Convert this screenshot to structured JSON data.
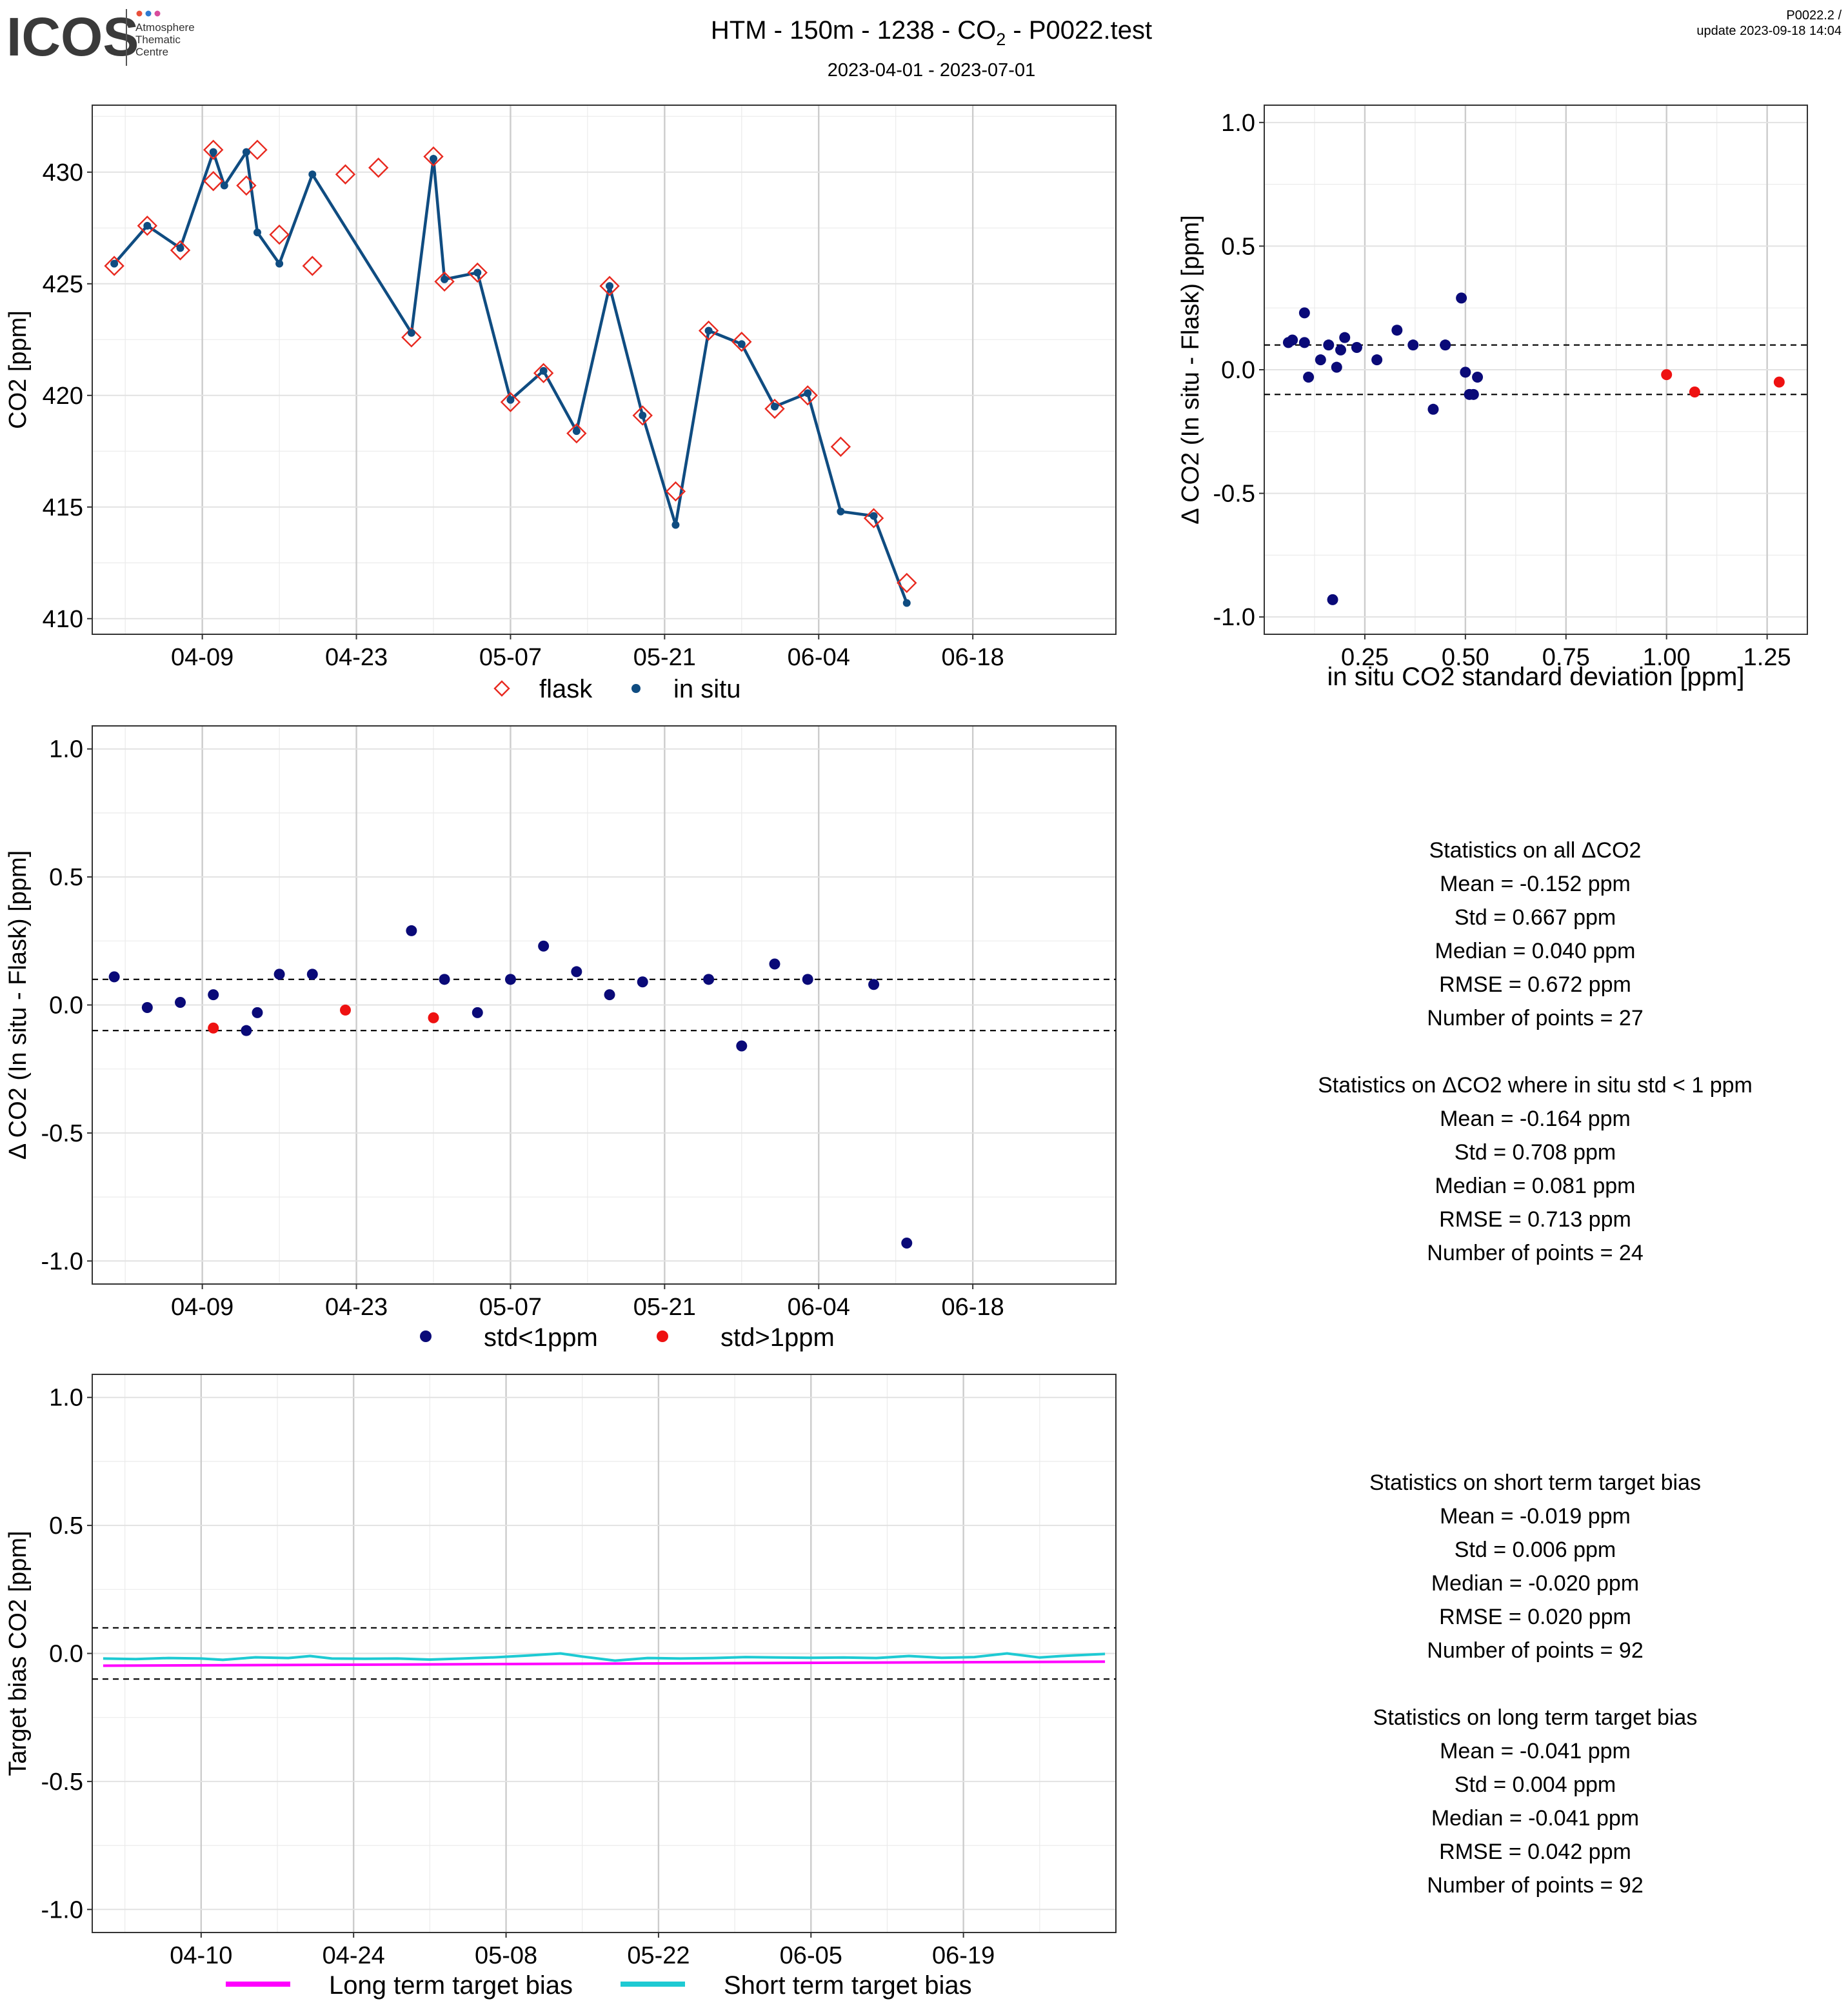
{
  "header": {
    "logo_text": "ICOS",
    "logo_sub": [
      "Atmosphere",
      "Thematic",
      "Centre"
    ],
    "title_main": "HTM - 150m - 1238 - CO",
    "title_sub": "2",
    "title_tail": " - P0022.test",
    "date_range": "2023-04-01 - 2023-07-01",
    "version": "P0022.2 /",
    "update": "update  2023-09-18 14:04"
  },
  "colors": {
    "insitu": "#0f4c81",
    "flask": "#e8291f",
    "std_lt": "#0a0a78",
    "std_gt": "#ee1111",
    "long_bias": "#ff00ff",
    "short_bias": "#1ecad3"
  },
  "chart_data": [
    {
      "id": "co2_timeseries",
      "type": "line",
      "ylabel": "CO2 [ppm]",
      "xlabel": "",
      "x_tick_labels": [
        "04-09",
        "04-23",
        "05-07",
        "05-21",
        "06-04",
        "06-18"
      ],
      "x_ticks": [
        "2023-04-09",
        "2023-04-23",
        "2023-05-07",
        "2023-05-21",
        "2023-06-04",
        "2023-06-18"
      ],
      "xlim": [
        "2023-03-30",
        "2023-07-01"
      ],
      "ylim": [
        409.3,
        433.0
      ],
      "y_ticks": [
        410,
        415,
        420,
        425,
        430
      ],
      "legend": [
        "flask",
        "in situ"
      ],
      "legend_position": "bottom",
      "series": [
        {
          "name": "in situ",
          "kind": "line+points",
          "x": [
            "2023-04-01",
            "2023-04-04",
            "2023-04-07",
            "2023-04-10",
            "2023-04-11",
            "2023-04-13",
            "2023-04-14",
            "2023-04-16",
            "2023-04-19",
            "2023-04-22",
            "2023-04-28",
            "2023-04-30",
            "2023-05-01",
            "2023-05-04",
            "2023-05-07",
            "2023-05-10",
            "2023-05-13",
            "2023-05-16",
            "2023-05-19",
            "2023-05-22",
            "2023-05-25",
            "2023-05-28",
            "2023-05-31",
            "2023-06-03",
            "2023-06-06",
            "2023-06-09",
            "2023-06-12"
          ],
          "values": [
            425.9,
            427.6,
            426.6,
            430.9,
            429.4,
            430.9,
            427.3,
            425.9,
            429.9,
            null,
            422.8,
            430.6,
            425.2,
            425.5,
            419.8,
            421.1,
            418.4,
            424.9,
            419.1,
            414.2,
            422.9,
            422.3,
            419.5,
            420.1,
            414.8,
            414.6,
            410.7
          ]
        },
        {
          "name": "flask",
          "kind": "points",
          "x": [
            "2023-04-01",
            "2023-04-04",
            "2023-04-07",
            "2023-04-10",
            "2023-04-10",
            "2023-04-13",
            "2023-04-14",
            "2023-04-16",
            "2023-04-19",
            "2023-04-22",
            "2023-04-25",
            "2023-04-28",
            "2023-04-30",
            "2023-05-01",
            "2023-05-04",
            "2023-05-07",
            "2023-05-10",
            "2023-05-13",
            "2023-05-16",
            "2023-05-19",
            "2023-05-22",
            "2023-05-25",
            "2023-05-28",
            "2023-05-31",
            "2023-06-03",
            "2023-06-06",
            "2023-06-09",
            "2023-06-12"
          ],
          "values": [
            425.8,
            427.6,
            426.5,
            429.6,
            431.0,
            429.4,
            431.0,
            427.2,
            425.8,
            429.9,
            430.2,
            422.6,
            430.7,
            425.1,
            425.5,
            419.7,
            421.0,
            418.3,
            424.9,
            419.1,
            415.7,
            422.9,
            422.4,
            419.4,
            420.0,
            417.7,
            414.5,
            411.6
          ]
        }
      ]
    },
    {
      "id": "delta_vs_std",
      "type": "scatter",
      "xlabel": "in situ CO2 standard deviation [ppm]",
      "ylabel": "Δ CO2 (In situ - Flask) [ppm]",
      "xlim": [
        0.0,
        1.35
      ],
      "ylim": [
        -1.07,
        1.07
      ],
      "x_ticks": [
        0.25,
        0.5,
        0.75,
        1.0,
        1.25
      ],
      "x_tick_labels": [
        "0.25",
        "0.50",
        "0.75",
        "1.00",
        "1.25"
      ],
      "y_ticks": [
        1.0,
        0.5,
        0.0,
        -0.5,
        -1.0
      ],
      "y_tick_labels": [
        "1.0",
        "0.5",
        "0.0",
        "-0.5",
        "-1.0"
      ],
      "hlines": [
        0.1,
        -0.1
      ],
      "series": [
        {
          "name": "std<1ppm",
          "x": [
            0.06,
            0.07,
            0.1,
            0.1,
            0.11,
            0.14,
            0.16,
            0.17,
            0.18,
            0.19,
            0.2,
            0.23,
            0.28,
            0.33,
            0.37,
            0.42,
            0.45,
            0.49,
            0.5,
            0.52,
            0.53,
            0.51
          ],
          "y": [
            0.11,
            0.12,
            0.23,
            0.11,
            -0.03,
            0.04,
            0.1,
            -0.93,
            0.01,
            0.08,
            0.13,
            0.09,
            0.04,
            0.16,
            0.1,
            -0.16,
            0.1,
            0.29,
            -0.01,
            -0.1,
            -0.03,
            -0.1
          ]
        },
        {
          "name": "std>1ppm",
          "x": [
            1.0,
            1.07,
            1.28
          ],
          "y": [
            -0.02,
            -0.09,
            -0.05
          ]
        }
      ]
    },
    {
      "id": "delta_timeseries",
      "type": "scatter",
      "ylabel": "Δ CO2 (In situ - Flask) [ppm]",
      "xlabel": "",
      "x_tick_labels": [
        "04-09",
        "04-23",
        "05-07",
        "05-21",
        "06-04",
        "06-18"
      ],
      "x_ticks": [
        "2023-04-09",
        "2023-04-23",
        "2023-05-07",
        "2023-05-21",
        "2023-06-04",
        "2023-06-18"
      ],
      "xlim": [
        "2023-03-30",
        "2023-07-01"
      ],
      "ylim": [
        -1.09,
        1.09
      ],
      "y_ticks": [
        1.0,
        0.5,
        0.0,
        -0.5,
        -1.0
      ],
      "y_tick_labels": [
        "1.0",
        "0.5",
        "0.0",
        "-0.5",
        "-1.0"
      ],
      "hlines": [
        0.1,
        -0.1
      ],
      "legend": [
        "std<1ppm",
        "std>1ppm"
      ],
      "legend_position": "bottom",
      "series": [
        {
          "name": "std<1ppm",
          "x": [
            "2023-04-01",
            "2023-04-04",
            "2023-04-07",
            "2023-04-10",
            "2023-04-13",
            "2023-04-14",
            "2023-04-16",
            "2023-04-19",
            "2023-04-28",
            "2023-05-01",
            "2023-05-04",
            "2023-05-07",
            "2023-05-10",
            "2023-05-13",
            "2023-05-16",
            "2023-05-19",
            "2023-05-25",
            "2023-05-28",
            "2023-05-31",
            "2023-06-03",
            "2023-06-09",
            "2023-06-12"
          ],
          "y": [
            0.11,
            -0.01,
            0.01,
            0.04,
            -0.1,
            -0.03,
            0.12,
            0.12,
            0.29,
            0.1,
            -0.03,
            0.1,
            0.23,
            0.13,
            0.04,
            0.09,
            0.1,
            -0.16,
            0.16,
            0.1,
            0.08,
            -0.93
          ]
        },
        {
          "name": "std>1ppm",
          "x": [
            "2023-04-10",
            "2023-04-22",
            "2023-04-30"
          ],
          "y": [
            -0.09,
            -0.02,
            -0.05
          ]
        }
      ]
    },
    {
      "id": "target_bias",
      "type": "line",
      "ylabel": "Target bias CO2 [ppm]",
      "xlabel": "",
      "x_tick_labels": [
        "04-10",
        "04-24",
        "05-08",
        "05-22",
        "06-05",
        "06-19"
      ],
      "x_ticks": [
        "2023-04-10",
        "2023-04-24",
        "2023-05-08",
        "2023-05-22",
        "2023-06-05",
        "2023-06-19"
      ],
      "xlim": [
        "2023-03-31",
        "2023-07-03"
      ],
      "ylim": [
        -1.09,
        1.09
      ],
      "y_ticks": [
        1.0,
        0.5,
        0.0,
        -0.5,
        -1.0
      ],
      "y_tick_labels": [
        "1.0",
        "0.5",
        "0.0",
        "-0.5",
        "-1.0"
      ],
      "hlines": [
        0.1,
        -0.1
      ],
      "legend": [
        "Long term target bias",
        "Short term target bias"
      ],
      "legend_position": "bottom",
      "series": [
        {
          "name": "Long term target bias",
          "x": [
            "2023-04-01",
            "2023-07-02"
          ],
          "values": [
            -0.048,
            -0.032
          ]
        },
        {
          "name": "Short term target bias",
          "x": [
            "2023-04-01",
            "2023-04-04",
            "2023-04-07",
            "2023-04-10",
            "2023-04-12",
            "2023-04-15",
            "2023-04-18",
            "2023-04-20",
            "2023-04-22",
            "2023-04-25",
            "2023-04-28",
            "2023-05-01",
            "2023-05-04",
            "2023-05-07",
            "2023-05-10",
            "2023-05-13",
            "2023-05-15",
            "2023-05-18",
            "2023-05-21",
            "2023-05-24",
            "2023-05-27",
            "2023-05-30",
            "2023-06-02",
            "2023-06-05",
            "2023-06-08",
            "2023-06-11",
            "2023-06-14",
            "2023-06-17",
            "2023-06-20",
            "2023-06-23",
            "2023-06-26",
            "2023-06-28",
            "2023-07-02"
          ],
          "values": [
            -0.02,
            -0.022,
            -0.018,
            -0.02,
            -0.025,
            -0.015,
            -0.018,
            -0.01,
            -0.02,
            -0.021,
            -0.02,
            -0.024,
            -0.02,
            -0.015,
            -0.008,
            0.0,
            -0.012,
            -0.028,
            -0.018,
            -0.02,
            -0.018,
            -0.014,
            -0.016,
            -0.017,
            -0.016,
            -0.018,
            -0.01,
            -0.017,
            -0.014,
            0.0,
            -0.016,
            -0.01,
            -0.002
          ]
        }
      ]
    }
  ],
  "stats_all": {
    "lines": [
      "Statistics on all ΔCO2",
      "Mean =  -0.152 ppm",
      "Std =  0.667 ppm",
      "Median =  0.040 ppm",
      "RMSE =  0.672 ppm",
      "Number of points =  27"
    ],
    "lines_lt1": [
      "Statistics on ΔCO2 where in situ std < 1 ppm",
      "Mean =  -0.164 ppm",
      "Std =  0.708 ppm",
      "Median =  0.081 ppm",
      "RMSE =  0.713 ppm",
      "Number of points =  24"
    ]
  },
  "stats_bias": {
    "short": [
      "Statistics on short term target bias",
      "Mean =  -0.019 ppm",
      "Std =  0.006 ppm",
      "Median =  -0.020 ppm",
      "RMSE =  0.020 ppm",
      "Number of points =  92"
    ],
    "long": [
      "Statistics on long term target bias",
      "Mean =  -0.041 ppm",
      "Std =  0.004 ppm",
      "Median =  -0.041 ppm",
      "RMSE =  0.042 ppm",
      "Number of points =  92"
    ]
  }
}
